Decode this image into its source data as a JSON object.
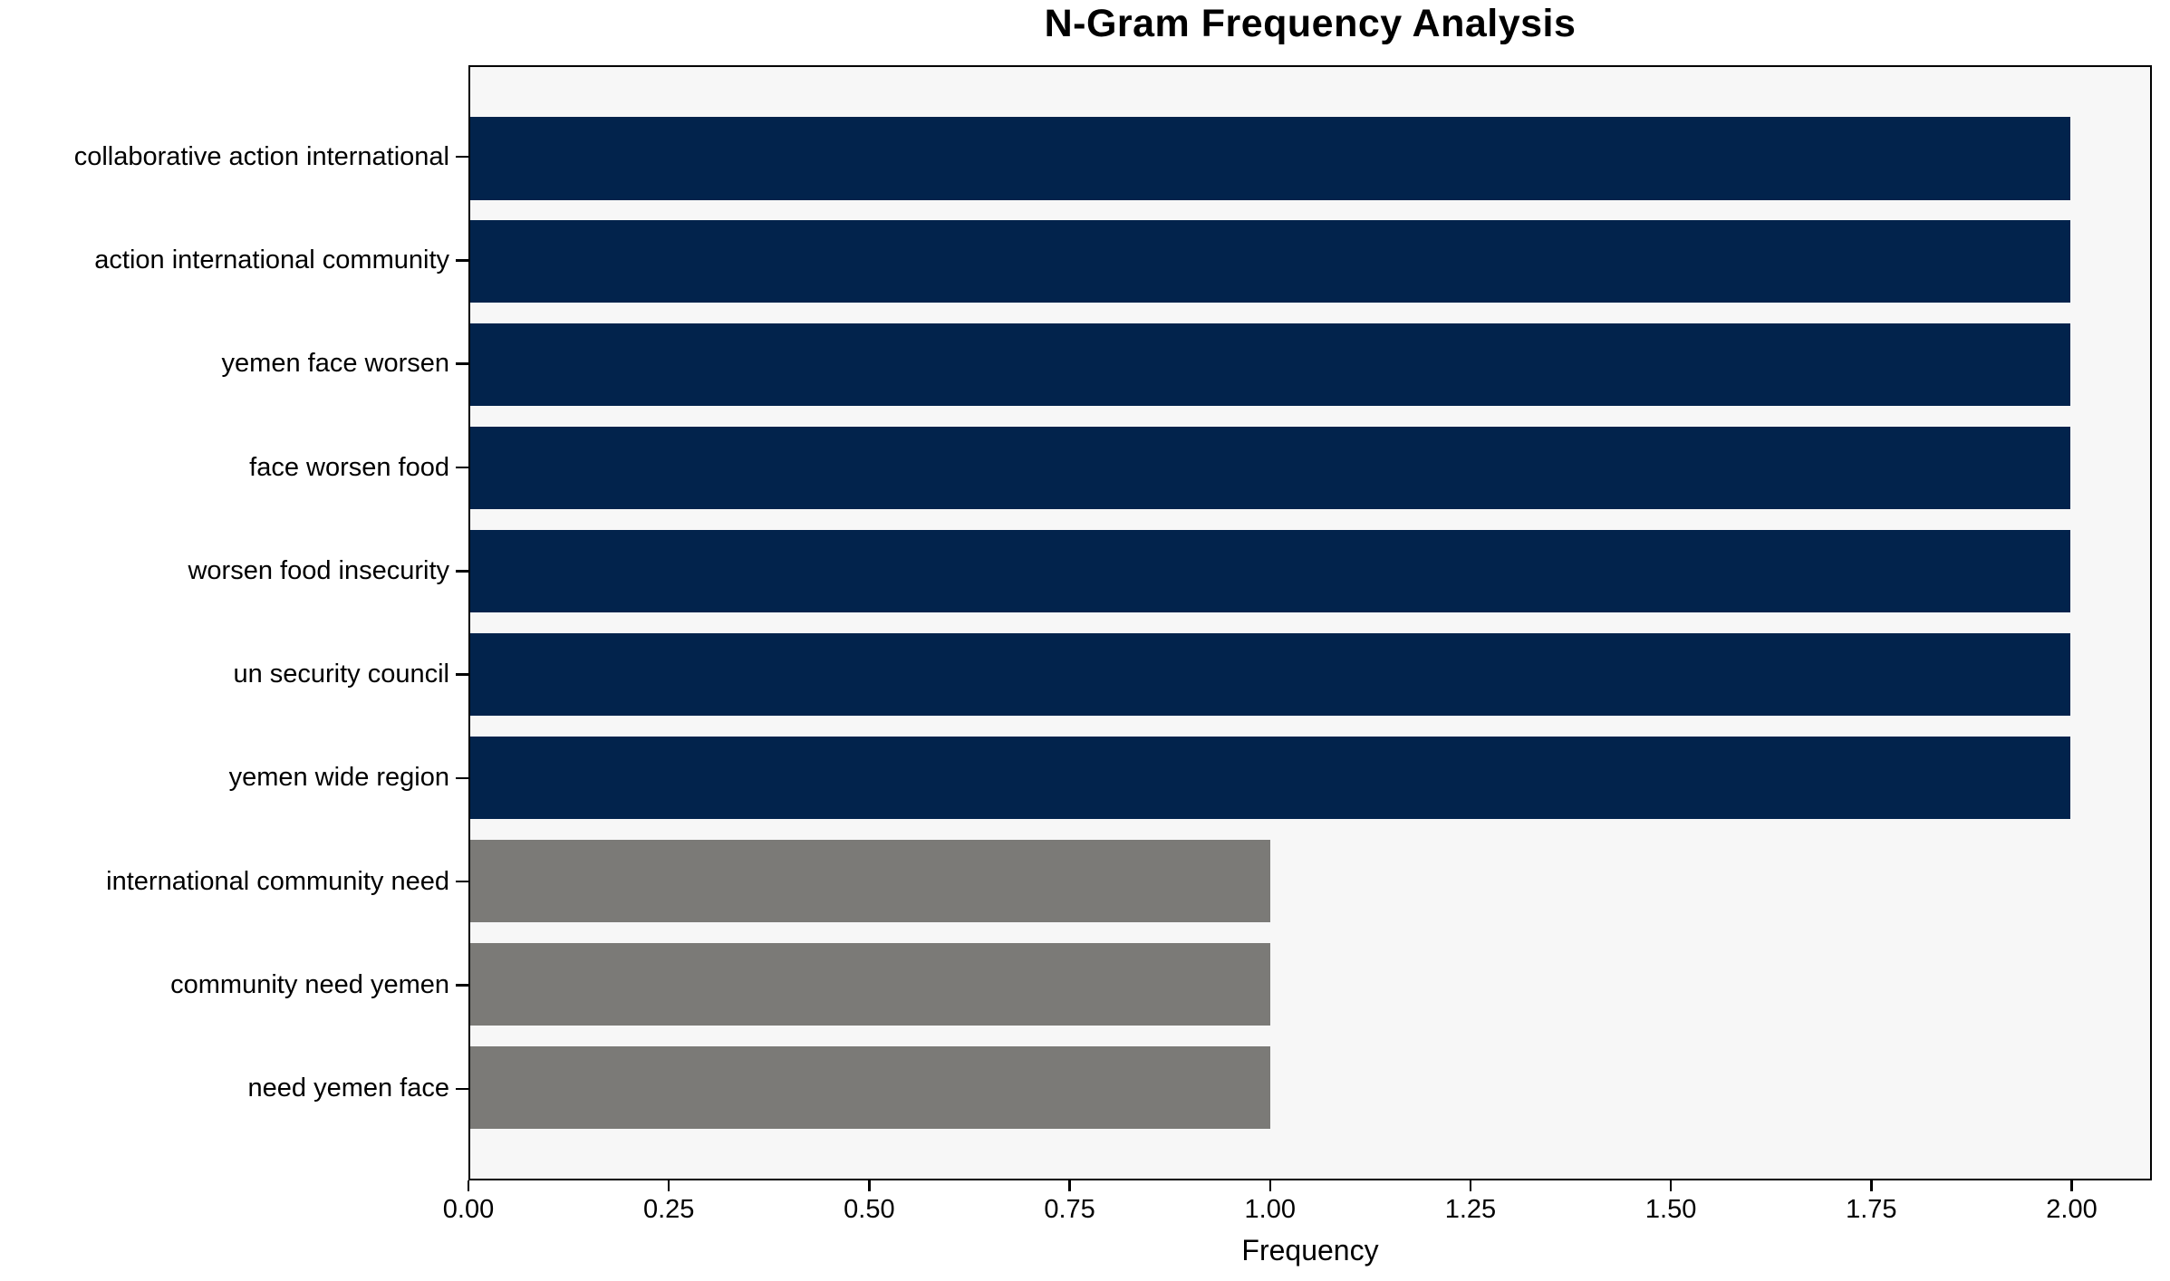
{
  "title": "N-Gram Frequency Analysis",
  "chart_data": {
    "type": "bar",
    "orientation": "horizontal",
    "title": "N-Gram Frequency Analysis",
    "categories": [
      "collaborative action international",
      "action international community",
      "yemen face worsen",
      "face worsen food",
      "worsen food insecurity",
      "un security council",
      "yemen wide region",
      "international community need",
      "community need yemen",
      "need yemen face"
    ],
    "values": [
      2,
      2,
      2,
      2,
      2,
      2,
      2,
      1,
      1,
      1
    ],
    "bar_colors": [
      "#02234c",
      "#02234c",
      "#02234c",
      "#02234c",
      "#02234c",
      "#02234c",
      "#02234c",
      "#7b7a77",
      "#7b7a77",
      "#7b7a77"
    ],
    "xlabel": "Frequency",
    "ylabel": "",
    "xlim": [
      0,
      2.1
    ],
    "x_tick_labels": [
      "0.00",
      "0.25",
      "0.50",
      "0.75",
      "1.00",
      "1.25",
      "1.50",
      "1.75",
      "2.00"
    ],
    "x_tick_values": [
      0,
      0.25,
      0.5,
      0.75,
      1.0,
      1.25,
      1.5,
      1.75,
      2.0
    ],
    "grid": "off",
    "legend": "none",
    "plot_background": "#f7f7f7",
    "figure_background": "#ffffff",
    "accent_colors": {
      "navy": "#02234c",
      "gray": "#7b7a77"
    }
  }
}
